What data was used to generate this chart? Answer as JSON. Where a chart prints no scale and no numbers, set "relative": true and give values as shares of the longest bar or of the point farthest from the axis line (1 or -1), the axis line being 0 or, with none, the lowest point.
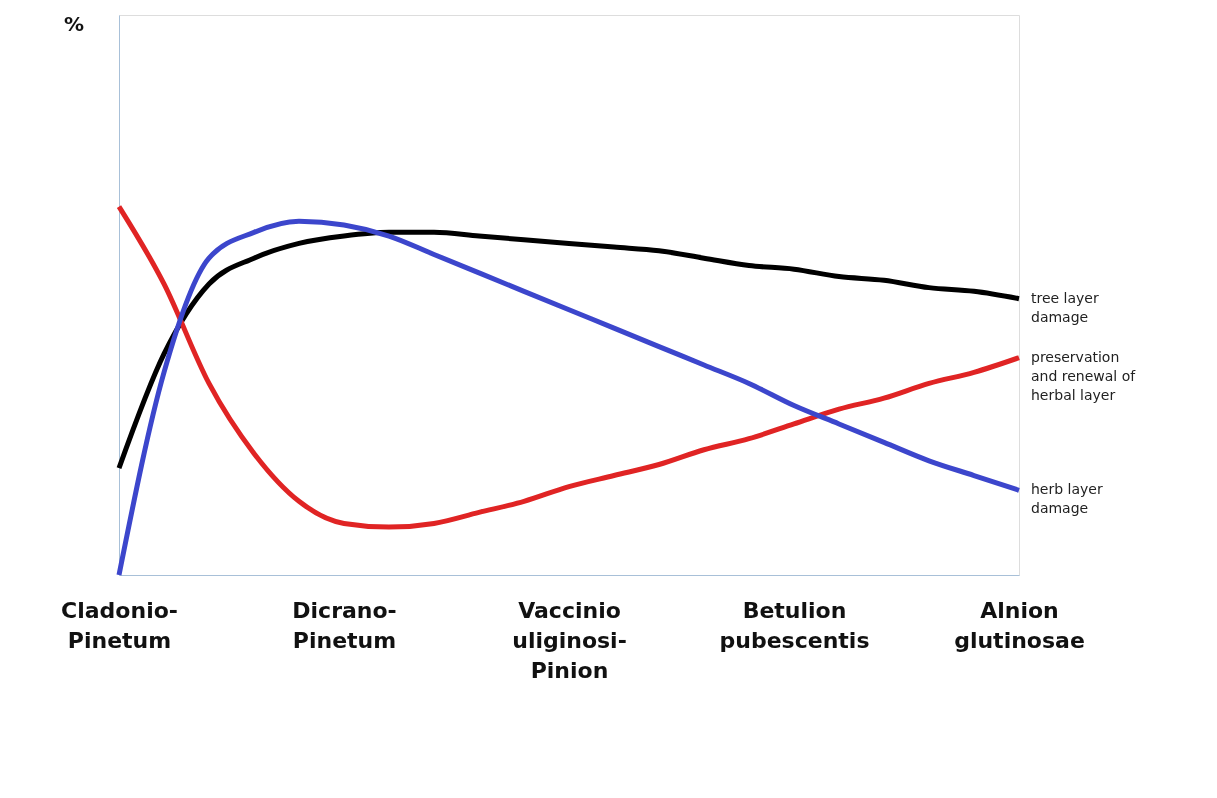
{
  "chart_data": {
    "type": "line",
    "relative": true,
    "annotations": [
      "%"
    ],
    "legend": false,
    "line_style": "solid",
    "marker": "none",
    "categories": [
      "Cladonio-\nPinetum",
      null,
      null,
      null,
      null,
      "Dicrano-\nPinetum",
      null,
      null,
      null,
      null,
      "Vaccinio\nuliginosi-\nPinion",
      null,
      null,
      null,
      null,
      "Betulion\npubescentis",
      null,
      null,
      null,
      null,
      "Alnion\nglutinosae"
    ],
    "series": [
      {
        "name": "tree layer damage",
        "color": "#000000",
        "values": [
          0.29,
          0.6,
          0.79,
          0.86,
          0.9,
          0.92,
          0.93,
          0.93,
          0.92,
          0.91,
          0.9,
          0.89,
          0.88,
          0.86,
          0.84,
          0.83,
          0.81,
          0.8,
          0.78,
          0.77,
          0.75
        ]
      },
      {
        "name": "preservation and renewal of herbal layer",
        "color": "#e02424",
        "values": [
          1,
          0.79,
          0.52,
          0.33,
          0.2,
          0.14,
          0.13,
          0.14,
          0.17,
          0.2,
          0.24,
          0.27,
          0.3,
          0.34,
          0.37,
          0.41,
          0.45,
          0.48,
          0.52,
          0.55,
          0.59
        ]
      },
      {
        "name": "herb layer damage",
        "color": "#3c46cc",
        "values": [
          0,
          0.55,
          0.86,
          0.93,
          0.96,
          0.95,
          0.92,
          0.87,
          0.82,
          0.77,
          0.72,
          0.67,
          0.62,
          0.57,
          0.52,
          0.46,
          0.41,
          0.36,
          0.31,
          0.27,
          0.23
        ]
      }
    ]
  }
}
